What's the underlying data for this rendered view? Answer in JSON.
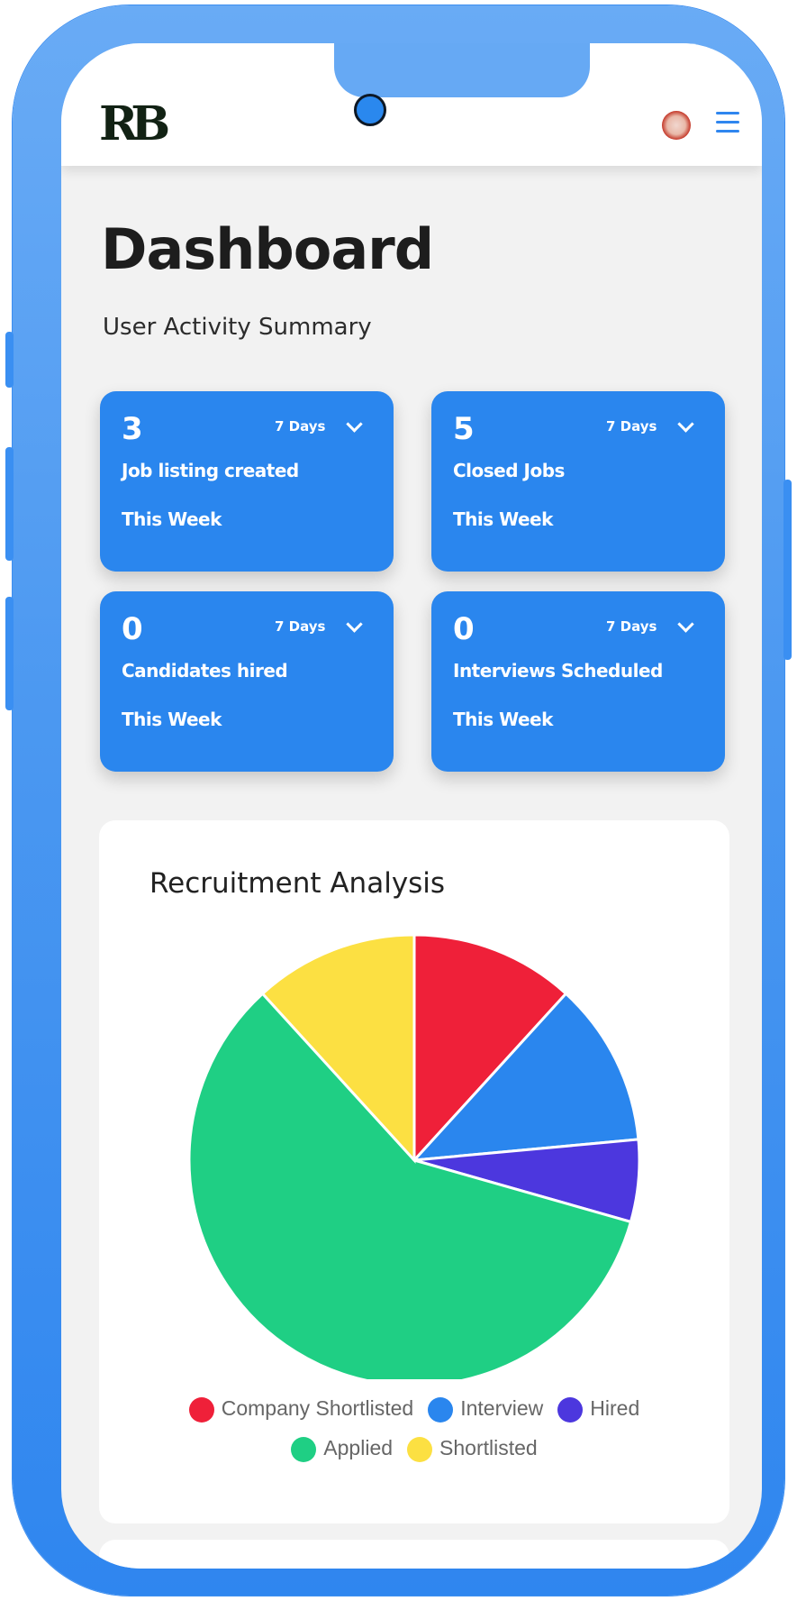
{
  "header": {
    "logo_text": "RB",
    "emblem_icon": "emblem-icon",
    "menu_icon": "menu-icon"
  },
  "page": {
    "title": "Dashboard",
    "subtitle": "User Activity Summary"
  },
  "cards": [
    {
      "count": "3",
      "period": "7 Days",
      "label": "Job listing created",
      "week": "This Week"
    },
    {
      "count": "5",
      "period": "7 Days",
      "label": "Closed Jobs",
      "week": "This Week"
    },
    {
      "count": "0",
      "period": "7 Days",
      "label": "Candidates hired",
      "week": "This Week"
    },
    {
      "count": "0",
      "period": "7 Days",
      "label": "Interviews Scheduled",
      "week": "This Week"
    }
  ],
  "colors": {
    "accent": "#2a86ee",
    "frame": "#4b98f1"
  },
  "chart_data": {
    "type": "pie",
    "title": "Recruitment Analysis",
    "categories": [
      "Company Shortlisted",
      "Interview",
      "Hired",
      "Applied",
      "Shortlisted"
    ],
    "values": [
      2,
      2,
      1,
      10,
      2
    ],
    "colors": [
      "#ef2039",
      "#2a86ee",
      "#4c37de",
      "#1fcf84",
      "#fce042"
    ],
    "legend_position": "bottom"
  }
}
